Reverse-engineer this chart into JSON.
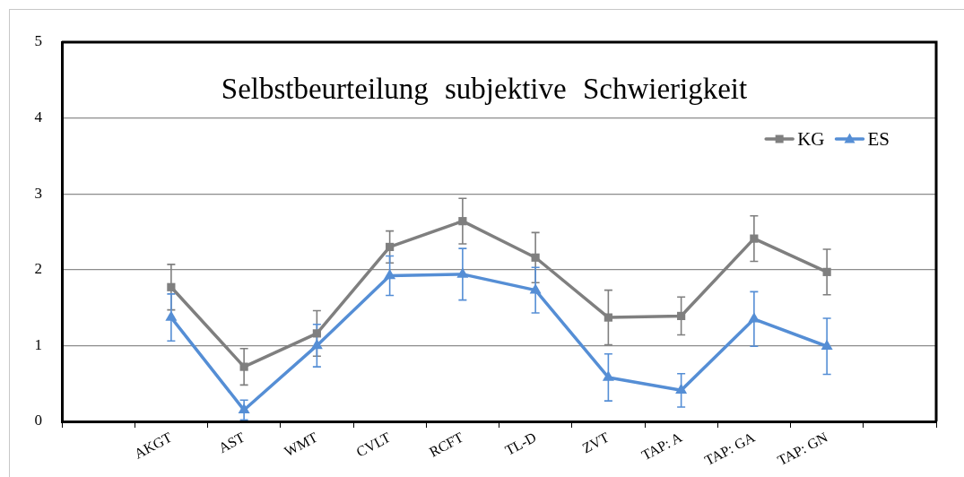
{
  "chart_data": {
    "type": "line",
    "title": "Selbstbeurteilung subjektive Schwierigkeit",
    "categories": [
      null,
      "AKGT",
      "AST",
      "WMT",
      "CVLT",
      "RCFT",
      "TL-D",
      "ZVT",
      "TAP: A",
      "TAP: GA",
      "TAP: GN",
      null
    ],
    "series": [
      {
        "name": "KG",
        "color": "#7f7f7f",
        "marker": "square",
        "values": [
          null,
          1.77,
          0.72,
          1.16,
          2.3,
          2.64,
          2.16,
          1.37,
          1.39,
          2.41,
          1.97,
          null
        ],
        "errors": [
          null,
          0.3,
          0.24,
          0.3,
          0.21,
          0.3,
          0.33,
          0.36,
          0.25,
          0.3,
          0.3,
          null
        ]
      },
      {
        "name": "ES",
        "color": "#558ed5",
        "marker": "triangle",
        "values": [
          null,
          1.37,
          0.15,
          1.0,
          1.92,
          1.94,
          1.73,
          0.58,
          0.41,
          1.35,
          0.99,
          null
        ],
        "errors": [
          null,
          0.31,
          0.13,
          0.28,
          0.26,
          0.34,
          0.3,
          0.31,
          0.22,
          0.36,
          0.37,
          null
        ]
      }
    ],
    "ylim": [
      0,
      5
    ],
    "yticks": [
      0,
      1,
      2,
      3,
      4,
      5
    ],
    "grid": "y",
    "legend": "top right",
    "line_style": "solid"
  }
}
